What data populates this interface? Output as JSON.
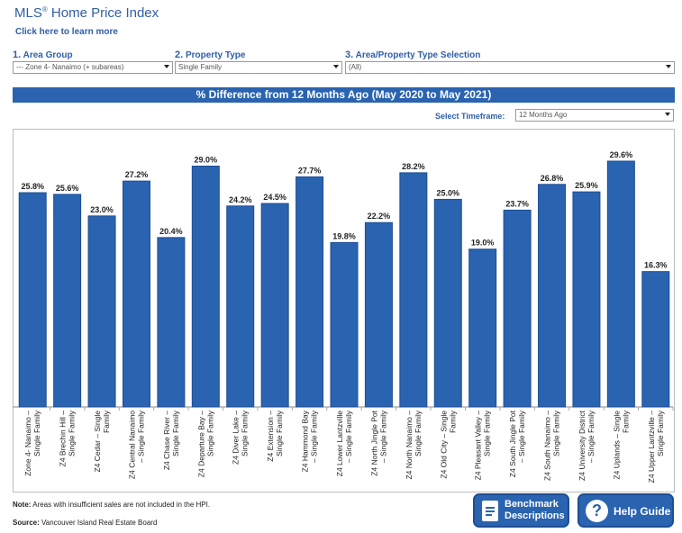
{
  "header": {
    "title_main": "MLS",
    "title_reg": "®",
    "title_rest": " Home Price Index",
    "learn_link": "Click here to learn more"
  },
  "filters": {
    "area_group": {
      "num": "1.",
      "label": "Area Group",
      "value": "--- Zone 4- Nanaimo (+ subareas)"
    },
    "property_type": {
      "num": "2.",
      "label": "Property Type",
      "value": "Single Family"
    },
    "selection": {
      "num": "3.",
      "label": "Area/Property Type Selection",
      "value": "(All)"
    }
  },
  "banner": "% Difference from 12 Months Ago (May 2020 to May 2021)",
  "timeframe": {
    "label": "Select Timeframe:",
    "value": "12 Months Ago"
  },
  "chart_data": {
    "type": "bar",
    "title": "% Difference from 12 Months Ago (May 2020 to May 2021)",
    "categories": [
      [
        "Zone 4- Nanaimo –",
        "Single Family"
      ],
      [
        "Z4 Brechin Hill –",
        "Single Family"
      ],
      [
        "Z4 Cedar – Single",
        "Family"
      ],
      [
        "Z4 Central Nanaimo",
        "– Single Family"
      ],
      [
        "Z4 Chase River –",
        "Single Family"
      ],
      [
        "Z4 Departure Bay –",
        "Single Family"
      ],
      [
        "Z4 Diver Lake –",
        "Single Family"
      ],
      [
        "Z4 Extension –",
        "Single Family"
      ],
      [
        "Z4 Hammond Bay",
        "– Single Family"
      ],
      [
        "Z4 Lower Lantzville",
        "– Single Family"
      ],
      [
        "Z4 North Jingle Pot",
        "– Single Family"
      ],
      [
        "Z4 North Nanaimo –",
        "Single Family"
      ],
      [
        "Z4 Old City – Single",
        "Family"
      ],
      [
        "Z4 Pleasant Valley –",
        "Single Family"
      ],
      [
        "Z4 South Jingle Pot",
        "– Single Family"
      ],
      [
        "Z4 South Nanaimo –",
        "Single Family"
      ],
      [
        "Z4 University District",
        "– Single Family"
      ],
      [
        "Z4 Uplands – Single",
        "Family"
      ],
      [
        "Z4 Upper Lantzville –",
        "Single Family"
      ]
    ],
    "values": [
      25.8,
      25.6,
      23.0,
      27.2,
      20.4,
      29.0,
      24.2,
      24.5,
      27.7,
      19.8,
      22.2,
      28.2,
      25.0,
      19.0,
      23.7,
      26.8,
      25.9,
      29.6,
      16.3
    ],
    "value_labels": [
      "25.8%",
      "25.6%",
      "23.0%",
      "27.2%",
      "20.4%",
      "29.0%",
      "24.2%",
      "24.5%",
      "27.7%",
      "19.8%",
      "22.2%",
      "28.2%",
      "25.0%",
      "19.0%",
      "23.7%",
      "26.8%",
      "25.9%",
      "29.6%",
      "16.3%"
    ],
    "ylim": [
      0,
      33.5
    ],
    "grid": false,
    "bar_color": "#2a63b0"
  },
  "footer": {
    "note_label": "Note:",
    "note_text": " Areas with insufficient sales are not included in the HPI.",
    "source_label": "Source:",
    "source_text": " Vancouver Island Real Estate Board",
    "bench_line1": "Benchmark",
    "bench_line2": "Descriptions",
    "help_label": "Help Guide",
    "help_glyph": "?"
  }
}
